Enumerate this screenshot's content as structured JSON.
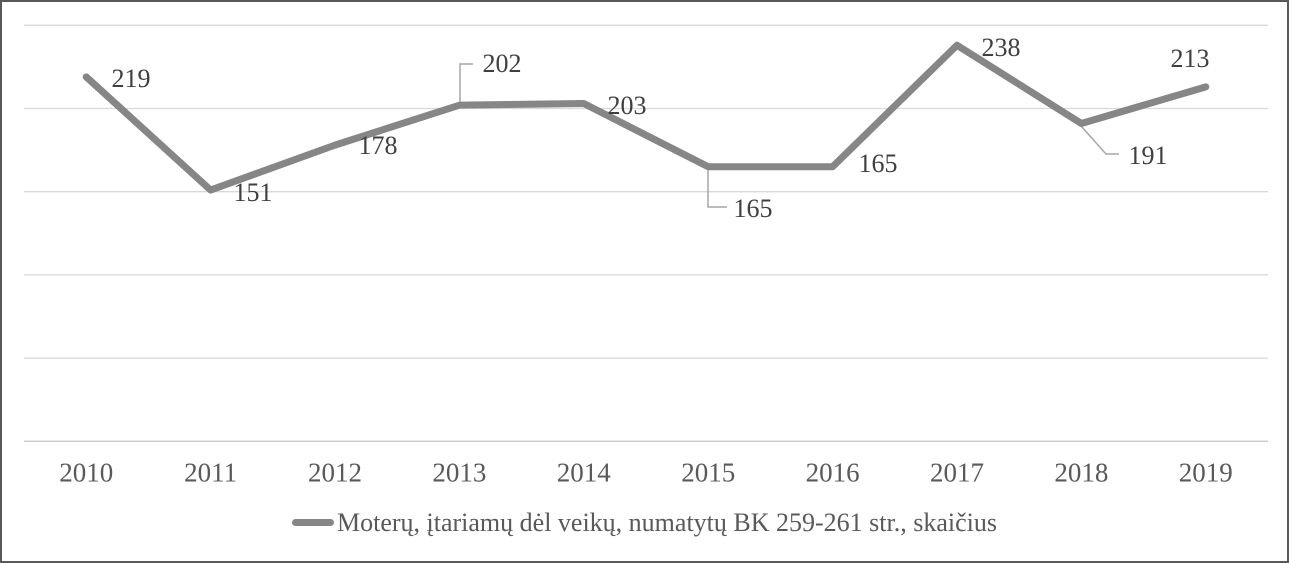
{
  "chart_data": {
    "type": "line",
    "title": "",
    "categories": [
      "2010",
      "2011",
      "2012",
      "2013",
      "2014",
      "2015",
      "2016",
      "2017",
      "2018",
      "2019"
    ],
    "series": [
      {
        "name": "Moterų, įtariamų dėl veikų, numatytų BK 259-261 str., skaičius",
        "values": [
          219,
          151,
          178,
          202,
          203,
          165,
          165,
          238,
          191,
          213
        ]
      }
    ],
    "data_labels": [
      219,
      151,
      178,
      202,
      203,
      165,
      165,
      238,
      191,
      213
    ],
    "xlabel": "",
    "ylabel": "",
    "ylim": [
      0,
      250
    ],
    "gridline_step": 50,
    "grid": true,
    "y_tick_labels_visible": false,
    "legend_position": "bottom",
    "colors": {
      "line": "#868686",
      "gridline": "#d9d9d9",
      "axis_line": "#c9c9c9",
      "data_label_text": "#3f3f3f",
      "axis_text": "#595959",
      "leader_line": "#a6a6a6",
      "border": "#595959"
    }
  }
}
